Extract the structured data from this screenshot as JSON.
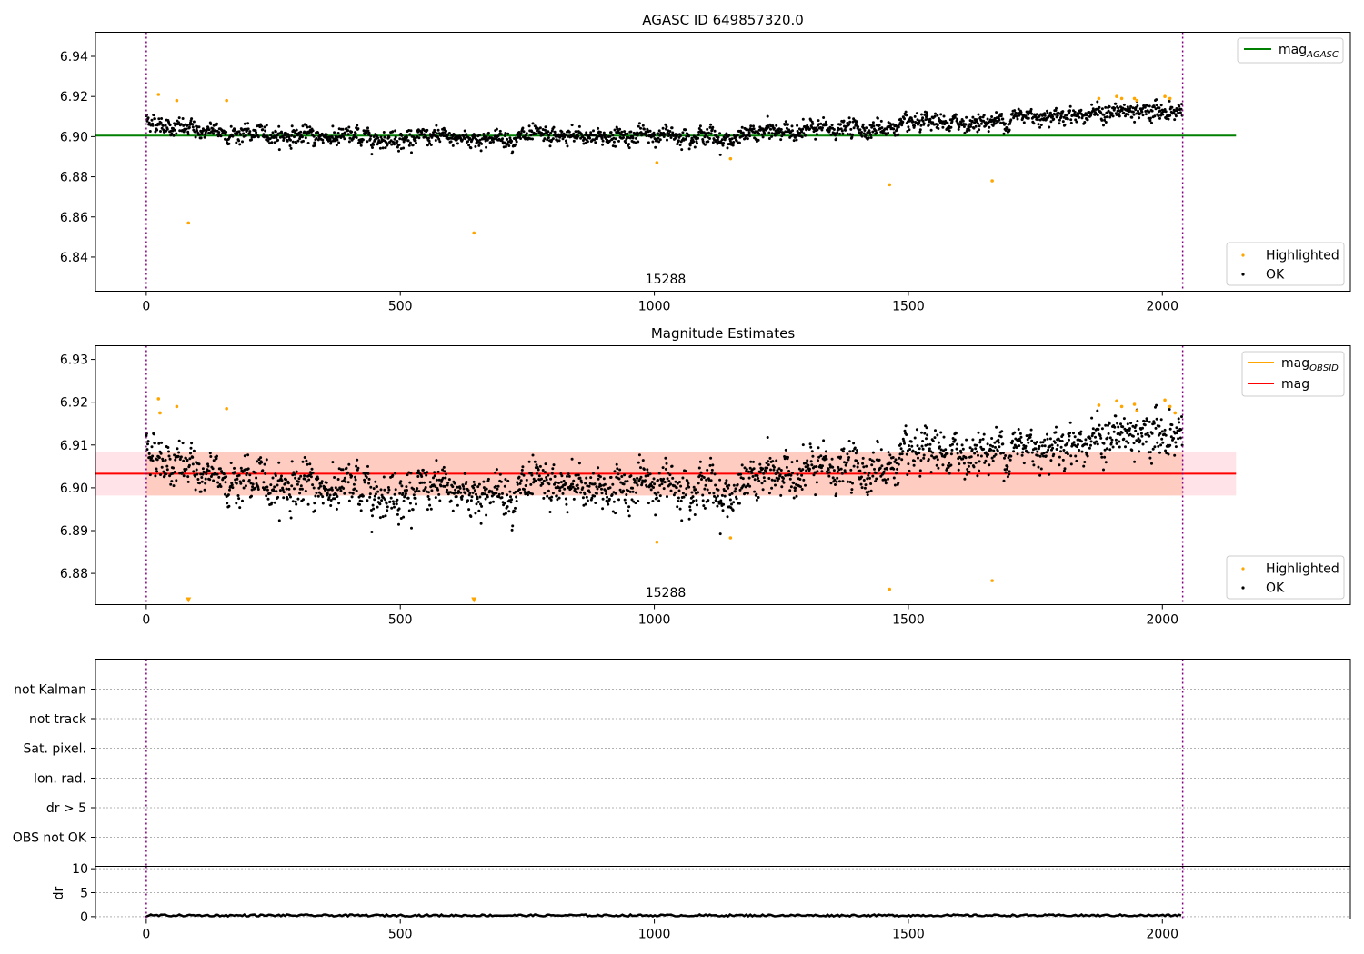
{
  "chart_data": [
    {
      "type": "scatter",
      "title": "AGASC ID 649857320.0",
      "xlim": [
        -100,
        2370
      ],
      "ylim": [
        6.823,
        6.952
      ],
      "xticks": [
        0,
        500,
        1000,
        1500,
        2000
      ],
      "yticks": [
        6.84,
        6.86,
        6.88,
        6.9,
        6.92,
        6.94
      ],
      "ytick_labels": [
        "6.84",
        "6.86",
        "6.88",
        "6.90",
        "6.92",
        "6.94"
      ],
      "vlines_x": [
        0,
        2040
      ],
      "annotation": "15288",
      "hline": {
        "name": "mag",
        "subscript": "AGASC",
        "y": 6.9005,
        "x_range": [
          -100,
          2145
        ],
        "color": "#008000"
      },
      "legend_top": [
        {
          "name": "mag",
          "subscript": "AGASC",
          "kind": "line",
          "color": "#008000"
        }
      ],
      "legend_bottom": [
        {
          "name": "Highlighted",
          "kind": "dot",
          "color": "#ffa500"
        },
        {
          "name": "OK",
          "kind": "dot",
          "color": "#000000"
        }
      ],
      "highlighted_points": [
        [
          24,
          6.921
        ],
        [
          60,
          6.918
        ],
        [
          83,
          6.857
        ],
        [
          158,
          6.918
        ],
        [
          645,
          6.852
        ],
        [
          1005,
          6.887
        ],
        [
          1150,
          6.889
        ],
        [
          1463,
          6.876
        ],
        [
          1665,
          6.878
        ],
        [
          1875,
          6.919
        ],
        [
          1910,
          6.92
        ],
        [
          1920,
          6.919
        ],
        [
          1945,
          6.919
        ],
        [
          1950,
          6.918
        ],
        [
          2005,
          6.92
        ],
        [
          2015,
          6.919
        ]
      ]
    },
    {
      "type": "scatter",
      "title": "Magnitude Estimates",
      "xlim": [
        -100,
        2370
      ],
      "ylim": [
        6.8727,
        6.9332
      ],
      "xticks": [
        0,
        500,
        1000,
        1500,
        2000
      ],
      "yticks": [
        6.88,
        6.89,
        6.9,
        6.91,
        6.92,
        6.93
      ],
      "ytick_labels": [
        "6.88",
        "6.89",
        "6.90",
        "6.91",
        "6.92",
        "6.93"
      ],
      "vlines_x": [
        0,
        2040
      ],
      "annotation": "15288",
      "mag_line": {
        "y": 6.9033,
        "color": "#ff0000"
      },
      "mag_band": {
        "y": [
          6.8982,
          6.9084
        ],
        "color": "#ffc0cb"
      },
      "obsid_band": {
        "y": [
          6.8982,
          6.9084
        ],
        "x_range": [
          0,
          2040
        ],
        "color": "#ffa07a"
      },
      "legend_top": [
        {
          "name": "mag",
          "subscript": "OBSID",
          "kind": "line",
          "color": "#ffa500"
        },
        {
          "name": "mag",
          "subscript": "",
          "kind": "line",
          "color": "#ff0000"
        }
      ],
      "legend_bottom": [
        {
          "name": "Highlighted",
          "kind": "dot",
          "color": "#ffa500"
        },
        {
          "name": "OK",
          "kind": "dot",
          "color": "#000000"
        }
      ],
      "highlighted_points": [
        [
          24,
          6.9208
        ],
        [
          27,
          6.9175
        ],
        [
          60,
          6.919
        ],
        [
          158,
          6.9185
        ],
        [
          1005,
          6.8873
        ],
        [
          1150,
          6.8883
        ],
        [
          1463,
          6.8763
        ],
        [
          1665,
          6.8783
        ],
        [
          1875,
          6.9193
        ],
        [
          1910,
          6.9203
        ],
        [
          1920,
          6.919
        ],
        [
          1945,
          6.9195
        ],
        [
          1950,
          6.918
        ],
        [
          2005,
          6.9205
        ],
        [
          2015,
          6.919
        ],
        [
          2025,
          6.9175
        ]
      ],
      "below_range_markers_x": [
        83,
        645
      ]
    },
    {
      "type": "scatter",
      "title": "",
      "xlim": [
        -100,
        2370
      ],
      "flag_rows": [
        "not Kalman",
        "not track",
        "Sat. pixel.",
        "Ion. rad.",
        "dr > 5",
        "OBS not OK"
      ],
      "vlines_x": [
        0,
        2040
      ]
    },
    {
      "type": "line",
      "title": "",
      "xlim": [
        -100,
        2370
      ],
      "ylim": [
        -0.5,
        10.5
      ],
      "xticks": [
        0,
        500,
        1000,
        1500,
        2000
      ],
      "yticks": [
        0,
        5,
        10
      ],
      "ytick_labels": [
        "0",
        "5",
        "10"
      ],
      "ylabel": "dr",
      "vlines_x": [
        0,
        2040
      ],
      "series_level": 0.25
    }
  ]
}
